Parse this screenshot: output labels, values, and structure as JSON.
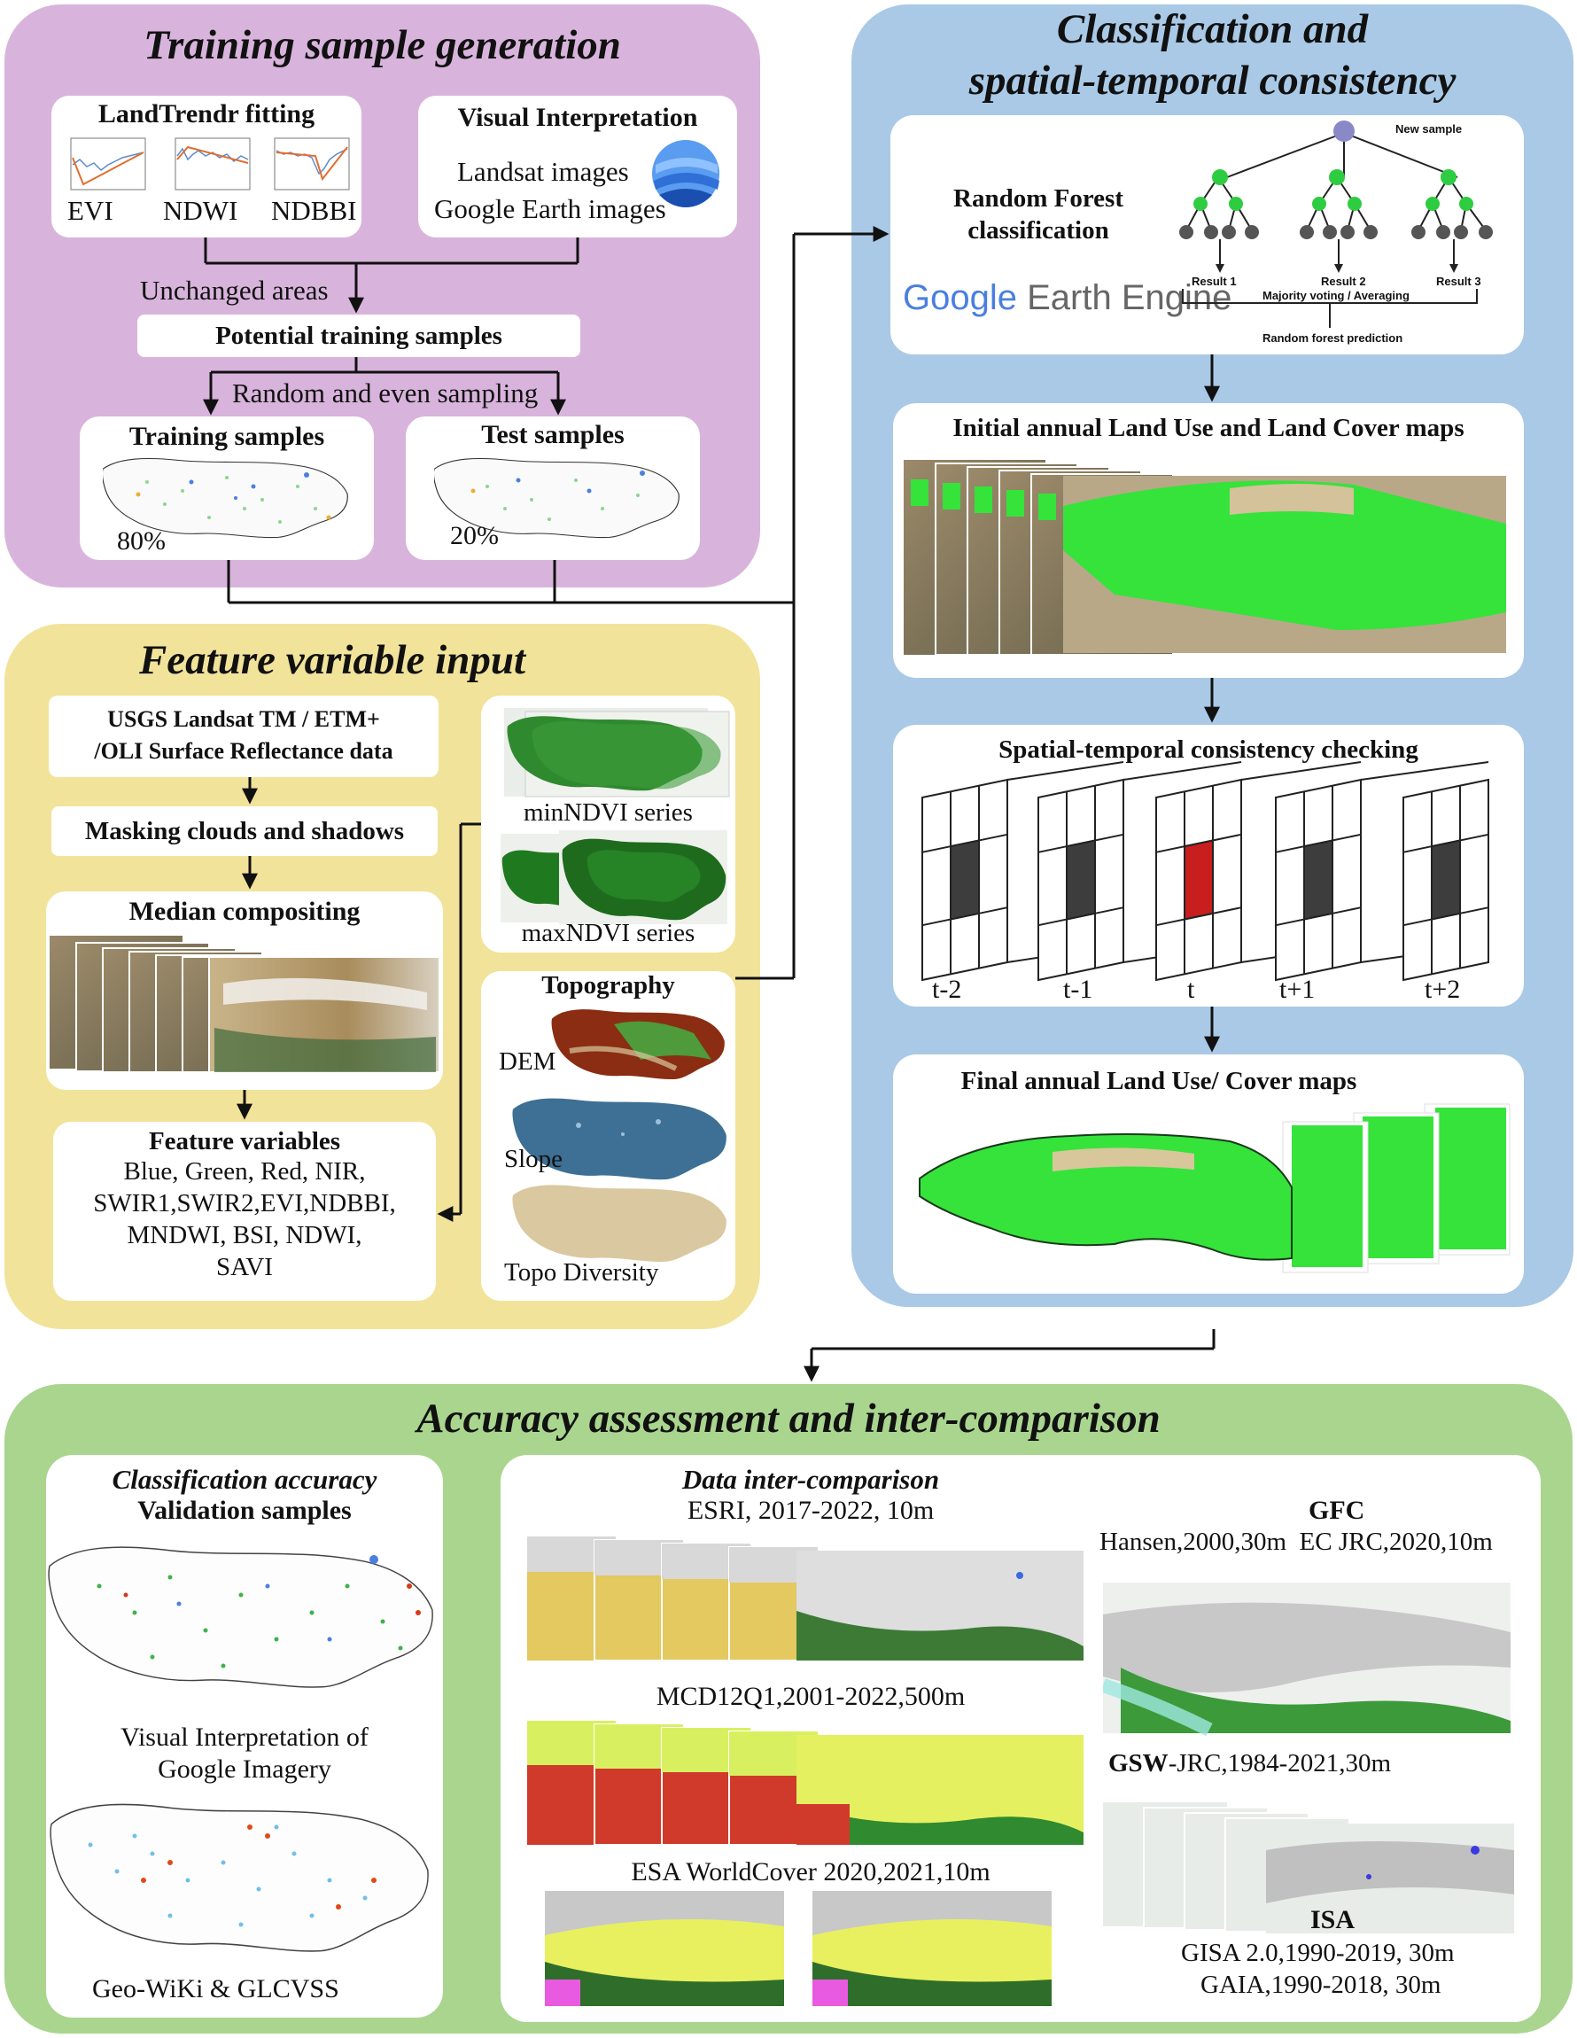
{
  "training": {
    "title": "Training sample generation",
    "landtrendr": {
      "title": "LandTrendr fitting",
      "labels": [
        "EVI",
        "NDWI",
        "NDBBI"
      ]
    },
    "visual": {
      "title": "Visual Interpretation",
      "line1": "Landsat images",
      "line2": "Google Earth images"
    },
    "unchanged": "Unchanged areas",
    "potential": "Potential training samples",
    "sampling": "Random and even sampling",
    "train_box": {
      "title": "Training samples",
      "pct": "80%"
    },
    "test_box": {
      "title": "Test samples",
      "pct": "20%"
    }
  },
  "feature": {
    "title": "Feature variable input",
    "usgs": {
      "line1": "USGS Landsat TM / ETM+",
      "line2": "/OLI Surface Reflectance data"
    },
    "masking": "Masking clouds and shadows",
    "median": "Median compositing",
    "vars": {
      "title": "Feature variables",
      "lines": [
        "Blue, Green, Red, NIR,",
        "SWIR1,SWIR2,EVI,NDBBI,",
        "MNDWI, BSI, NDWI,",
        "SAVI"
      ]
    },
    "min_ndvi": "minNDVI series",
    "max_ndvi": "maxNDVI series",
    "topo": {
      "title": "Topography",
      "dem": "DEM",
      "slope": "Slope",
      "diversity": "Topo Diversity"
    }
  },
  "classification": {
    "title_line1": "Classification and",
    "title_line2": "spatial-temporal consistency",
    "rf": {
      "title_line1": "Random Forest",
      "title_line2": "classification",
      "gee_word1": "Google",
      "gee_word2": "Earth Engine",
      "new_sample": "New sample",
      "results": [
        "Result 1",
        "Result 2",
        "Result 3"
      ],
      "voting": "Majority voting / Averaging",
      "prediction": "Random forest prediction"
    },
    "initial": "Initial annual Land Use and Land Cover maps",
    "consistency": {
      "title": "Spatial-temporal consistency checking",
      "labels": [
        "t-2",
        "t-1",
        "t",
        "t+1",
        "t+2"
      ]
    },
    "final": "Final annual Land Use/ Cover maps"
  },
  "accuracy": {
    "title": "Accuracy assessment and inter-comparison",
    "classification_accuracy": "Classification accuracy",
    "validation": "Validation samples",
    "visual_line1": "Visual Interpretation of",
    "visual_line2": "Google Imagery",
    "geowiki": "Geo-WiKi & GLCVSS",
    "inter": "Data inter-comparison",
    "esri": "ESRI, 2017-2022, 10m",
    "mcd": "MCD12Q1,2001-2022,500m",
    "esa": "ESA WorldCover 2020,2021,10m",
    "gfc": {
      "title": "GFC",
      "line": "Hansen,2000,30m  EC JRC,2020,10m"
    },
    "gsw": {
      "bold": "GSW",
      "rest": "-JRC,1984-2021,30m"
    },
    "isa": {
      "title": "ISA",
      "line1": "GISA 2.0,1990-2019, 30m",
      "line2": "GAIA,1990-2018, 30m"
    }
  },
  "colors": {
    "training_bg": "#d8b4dc",
    "feature_bg": "#f2e39a",
    "classification_bg": "#a9c9e6",
    "accuracy_bg": "#a9d58e",
    "veg_green": "#35e33b",
    "center_red": "#c81e1e",
    "cell_dark": "#3d3d3d",
    "node_green": "#2ecc40",
    "node_top": "#8a88c6"
  }
}
